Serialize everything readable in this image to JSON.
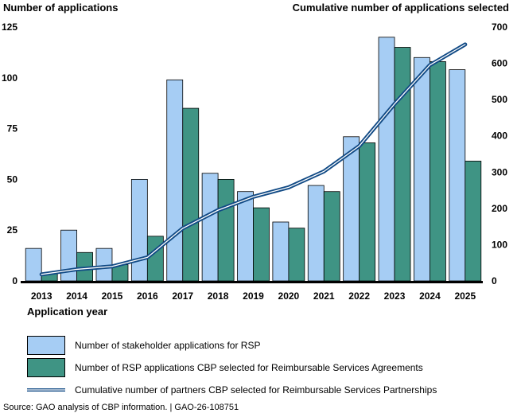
{
  "chart_data": {
    "type": "bar",
    "y_left_title": "Number of applications",
    "y_right_title": "Cumulative number of applications selected",
    "x_title": "Application year",
    "categories": [
      "2013",
      "2014",
      "2015",
      "2016",
      "2017",
      "2018",
      "2019",
      "2020",
      "2021",
      "2022",
      "2023",
      "2024",
      "2025"
    ],
    "ylim_left": [
      0,
      125
    ],
    "yticks_left": [
      "0",
      "25",
      "50",
      "75",
      "100",
      "125"
    ],
    "ylim_right": [
      0,
      700
    ],
    "yticks_right": [
      "0",
      "100",
      "200",
      "300",
      "400",
      "500",
      "600",
      "700"
    ],
    "series": [
      {
        "name": "Number of stakeholder applications for RSP",
        "axis": "left",
        "kind": "bar",
        "color": "#a6cdf4",
        "values": [
          16,
          25,
          16,
          50,
          99,
          53,
          44,
          29,
          47,
          71,
          120,
          110,
          104
        ]
      },
      {
        "name": "Number of RSP applications CBP selected for Reimbursable Services Agreements",
        "axis": "left",
        "kind": "bar",
        "color": "#3f9484",
        "values": [
          4,
          14,
          8,
          22,
          85,
          50,
          36,
          26,
          44,
          68,
          115,
          108,
          59
        ]
      },
      {
        "name": "Cumulative number of partners CBP selected for Reimbursable Services Partnerships",
        "axis": "right",
        "kind": "line",
        "color": "#114a85",
        "values": [
          18,
          32,
          40,
          65,
          145,
          195,
          232,
          258,
          302,
          372,
          488,
          595,
          652
        ]
      }
    ]
  },
  "source": "Source: GAO analysis of CBP information.  |  GAO-26-108751"
}
